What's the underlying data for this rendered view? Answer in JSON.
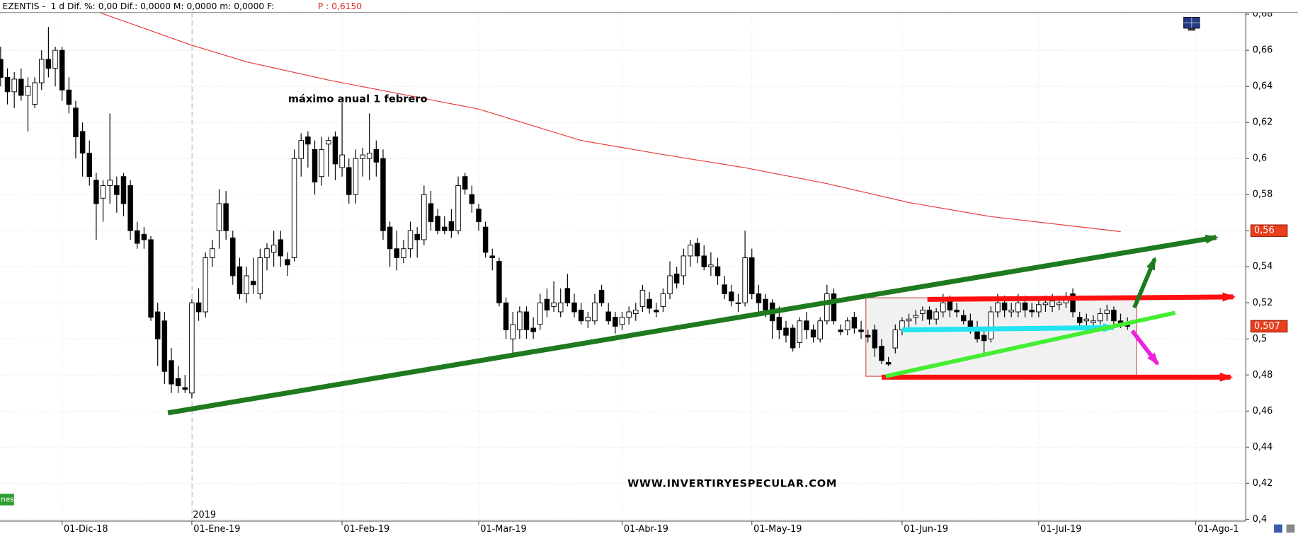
{
  "chart_data": {
    "type": "candlestick",
    "header": "EZENTIS -  1 d Dif. %: 0,00 Dif.: 0,0000 M: 0,0000 m: 0,0000 F:",
    "header_price": "P : 0,6150",
    "annotation": "máximo anual 1 febrero",
    "watermark": "WWW.INVERTIRYESPECULAR.COM",
    "year_label": "2019",
    "side_tag": "nes",
    "up_color": "#ffffff",
    "down_color": "#000000",
    "grid": true,
    "ylim": [
      0.399,
      0.681
    ],
    "yticks": [
      {
        "value": 0.4,
        "label": "0,4"
      },
      {
        "value": 0.42,
        "label": "0,42"
      },
      {
        "value": 0.44,
        "label": "0,44"
      },
      {
        "value": 0.46,
        "label": "0,46"
      },
      {
        "value": 0.48,
        "label": "0,48"
      },
      {
        "value": 0.5,
        "label": "0,5"
      },
      {
        "value": 0.52,
        "label": "0,52"
      },
      {
        "value": 0.54,
        "label": "0,54"
      },
      {
        "value": 0.56,
        "label": "0,56"
      },
      {
        "value": 0.58,
        "label": "0,58"
      },
      {
        "value": 0.6,
        "label": "0,6"
      },
      {
        "value": 0.62,
        "label": "0,62"
      },
      {
        "value": 0.64,
        "label": "0,64"
      },
      {
        "value": 0.66,
        "label": "0,66"
      },
      {
        "value": 0.68,
        "label": "0,68"
      }
    ],
    "categories": [
      null,
      null,
      null,
      null,
      null,
      null,
      null,
      null,
      null,
      "01-Dic-18",
      null,
      null,
      null,
      null,
      null,
      null,
      null,
      null,
      null,
      null,
      null,
      null,
      null,
      null,
      null,
      null,
      null,
      null,
      "01-Ene-19",
      null,
      null,
      null,
      null,
      null,
      null,
      null,
      null,
      null,
      null,
      null,
      null,
      null,
      null,
      null,
      null,
      null,
      null,
      null,
      null,
      null,
      "01-Feb-19",
      null,
      null,
      null,
      null,
      null,
      null,
      null,
      null,
      null,
      null,
      null,
      null,
      null,
      null,
      null,
      null,
      null,
      null,
      null,
      "01-Mar-19",
      null,
      null,
      null,
      null,
      null,
      null,
      null,
      null,
      null,
      null,
      null,
      null,
      null,
      null,
      null,
      null,
      null,
      null,
      null,
      null,
      "01-Abr-19",
      null,
      null,
      null,
      null,
      null,
      null,
      null,
      null,
      null,
      null,
      null,
      null,
      null,
      null,
      null,
      null,
      null,
      null,
      "01-May-19",
      null,
      null,
      null,
      null,
      null,
      null,
      null,
      null,
      null,
      null,
      null,
      null,
      null,
      null,
      null,
      null,
      null,
      null,
      null,
      null,
      null,
      "01-Jun-19",
      null,
      null,
      null,
      null,
      null,
      null,
      null,
      null,
      null,
      null,
      null,
      null,
      null,
      null,
      null,
      null,
      null,
      null,
      null,
      "01-Jul-19",
      null,
      null,
      null,
      null,
      null,
      null,
      null,
      null,
      null,
      null,
      null,
      null,
      null,
      null,
      null,
      null,
      null,
      null,
      null,
      null,
      null,
      null,
      "01-Ago-1"
    ],
    "ohlc": [
      [
        0.655,
        0.662,
        0.64,
        0.645
      ],
      [
        0.645,
        0.65,
        0.63,
        0.637
      ],
      [
        0.637,
        0.648,
        0.628,
        0.644
      ],
      [
        0.644,
        0.65,
        0.632,
        0.635
      ],
      [
        0.635,
        0.645,
        0.615,
        0.64
      ],
      [
        0.63,
        0.645,
        0.628,
        0.642
      ],
      [
        0.642,
        0.66,
        0.638,
        0.655
      ],
      [
        0.655,
        0.673,
        0.645,
        0.65
      ],
      [
        0.65,
        0.662,
        0.64,
        0.66
      ],
      [
        0.66,
        0.662,
        0.632,
        0.638
      ],
      [
        0.638,
        0.645,
        0.625,
        0.63
      ],
      [
        0.628,
        0.632,
        0.6,
        0.612
      ],
      [
        0.615,
        0.62,
        0.59,
        0.603
      ],
      [
        0.603,
        0.61,
        0.585,
        0.59
      ],
      [
        0.588,
        0.592,
        0.555,
        0.575
      ],
      [
        0.578,
        0.588,
        0.565,
        0.585
      ],
      [
        0.585,
        0.625,
        0.575,
        0.588
      ],
      [
        0.585,
        0.59,
        0.57,
        0.58
      ],
      [
        0.59,
        0.592,
        0.568,
        0.575
      ],
      [
        0.585,
        0.588,
        0.555,
        0.56
      ],
      [
        0.56,
        0.565,
        0.55,
        0.553
      ],
      [
        0.558,
        0.562,
        0.55,
        0.555
      ],
      [
        0.555,
        0.557,
        0.51,
        0.512
      ],
      [
        0.515,
        0.52,
        0.485,
        0.5
      ],
      [
        0.51,
        0.515,
        0.475,
        0.482
      ],
      [
        0.488,
        0.495,
        0.47,
        0.475
      ],
      [
        0.478,
        0.485,
        0.47,
        0.474
      ],
      [
        0.473,
        0.48,
        0.47,
        0.472
      ],
      [
        0.47,
        0.522,
        0.467,
        0.52
      ],
      [
        0.52,
        0.528,
        0.51,
        0.515
      ],
      [
        0.515,
        0.548,
        0.512,
        0.545
      ],
      [
        0.545,
        0.555,
        0.54,
        0.55
      ],
      [
        0.56,
        0.583,
        0.55,
        0.575
      ],
      [
        0.575,
        0.582,
        0.555,
        0.56
      ],
      [
        0.556,
        0.56,
        0.53,
        0.535
      ],
      [
        0.54,
        0.545,
        0.522,
        0.525
      ],
      [
        0.525,
        0.54,
        0.52,
        0.535
      ],
      [
        0.532,
        0.545,
        0.525,
        0.53
      ],
      [
        0.525,
        0.55,
        0.522,
        0.545
      ],
      [
        0.545,
        0.553,
        0.538,
        0.55
      ],
      [
        0.548,
        0.56,
        0.54,
        0.552
      ],
      [
        0.555,
        0.56,
        0.54,
        0.546
      ],
      [
        0.544,
        0.548,
        0.535,
        0.541
      ],
      [
        0.545,
        0.605,
        0.543,
        0.6
      ],
      [
        0.6,
        0.614,
        0.59,
        0.61
      ],
      [
        0.612,
        0.615,
        0.595,
        0.608
      ],
      [
        0.605,
        0.61,
        0.58,
        0.587
      ],
      [
        0.59,
        0.612,
        0.585,
        0.605
      ],
      [
        0.608,
        0.612,
        0.59,
        0.61
      ],
      [
        0.612,
        0.615,
        0.588,
        0.597
      ],
      [
        0.595,
        0.631,
        0.59,
        0.602
      ],
      [
        0.595,
        0.6,
        0.575,
        0.58
      ],
      [
        0.58,
        0.605,
        0.575,
        0.6
      ],
      [
        0.6,
        0.606,
        0.59,
        0.602
      ],
      [
        0.6,
        0.625,
        0.588,
        0.603
      ],
      [
        0.605,
        0.61,
        0.59,
        0.598
      ],
      [
        0.6,
        0.605,
        0.555,
        0.56
      ],
      [
        0.562,
        0.565,
        0.54,
        0.55
      ],
      [
        0.55,
        0.56,
        0.538,
        0.545
      ],
      [
        0.545,
        0.555,
        0.542,
        0.55
      ],
      [
        0.55,
        0.565,
        0.545,
        0.56
      ],
      [
        0.558,
        0.562,
        0.545,
        0.555
      ],
      [
        0.555,
        0.585,
        0.552,
        0.58
      ],
      [
        0.575,
        0.582,
        0.56,
        0.565
      ],
      [
        0.568,
        0.572,
        0.558,
        0.56
      ],
      [
        0.562,
        0.568,
        0.558,
        0.56
      ],
      [
        0.565,
        0.572,
        0.556,
        0.56
      ],
      [
        0.56,
        0.59,
        0.558,
        0.585
      ],
      [
        0.59,
        0.592,
        0.58,
        0.583
      ],
      [
        0.58,
        0.585,
        0.57,
        0.575
      ],
      [
        0.572,
        0.575,
        0.56,
        0.565
      ],
      [
        0.562,
        0.565,
        0.545,
        0.548
      ],
      [
        0.546,
        0.55,
        0.538,
        0.545
      ],
      [
        0.543,
        0.545,
        0.518,
        0.52
      ],
      [
        0.52,
        0.523,
        0.5,
        0.505
      ],
      [
        0.5,
        0.515,
        0.49,
        0.508
      ],
      [
        0.505,
        0.518,
        0.5,
        0.515
      ],
      [
        0.515,
        0.518,
        0.5,
        0.505
      ],
      [
        0.506,
        0.512,
        0.5,
        0.504
      ],
      [
        0.508,
        0.525,
        0.505,
        0.52
      ],
      [
        0.522,
        0.528,
        0.512,
        0.516
      ],
      [
        0.518,
        0.532,
        0.515,
        0.52
      ],
      [
        0.515,
        0.528,
        0.512,
        0.52
      ],
      [
        0.528,
        0.536,
        0.518,
        0.52
      ],
      [
        0.52,
        0.525,
        0.512,
        0.515
      ],
      [
        0.516,
        0.52,
        0.508,
        0.51
      ],
      [
        0.51,
        0.515,
        0.506,
        0.512
      ],
      [
        0.51,
        0.525,
        0.508,
        0.52
      ],
      [
        0.527,
        0.53,
        0.518,
        0.52
      ],
      [
        0.515,
        0.52,
        0.508,
        0.51
      ],
      [
        0.512,
        0.515,
        0.503,
        0.507
      ],
      [
        0.508,
        0.515,
        0.505,
        0.512
      ],
      [
        0.512,
        0.518,
        0.508,
        0.515
      ],
      [
        0.514,
        0.52,
        0.51,
        0.516
      ],
      [
        0.518,
        0.53,
        0.515,
        0.527
      ],
      [
        0.522,
        0.526,
        0.514,
        0.517
      ],
      [
        0.516,
        0.52,
        0.512,
        0.515
      ],
      [
        0.518,
        0.528,
        0.515,
        0.525
      ],
      [
        0.525,
        0.543,
        0.522,
        0.535
      ],
      [
        0.536,
        0.54,
        0.528,
        0.531
      ],
      [
        0.535,
        0.55,
        0.53,
        0.546
      ],
      [
        0.546,
        0.555,
        0.54,
        0.552
      ],
      [
        0.553,
        0.556,
        0.542,
        0.546
      ],
      [
        0.546,
        0.552,
        0.538,
        0.54
      ],
      [
        0.54,
        0.548,
        0.535,
        0.541
      ],
      [
        0.54,
        0.545,
        0.53,
        0.535
      ],
      [
        0.53,
        0.535,
        0.522,
        0.525
      ],
      [
        0.526,
        0.53,
        0.518,
        0.521
      ],
      [
        0.52,
        0.525,
        0.515,
        0.52
      ],
      [
        0.52,
        0.56,
        0.518,
        0.545
      ],
      [
        0.545,
        0.55,
        0.522,
        0.525
      ],
      [
        0.525,
        0.53,
        0.515,
        0.52
      ],
      [
        0.522,
        0.525,
        0.512,
        0.516
      ],
      [
        0.52,
        0.522,
        0.5,
        0.51
      ],
      [
        0.512,
        0.518,
        0.5,
        0.505
      ],
      [
        0.506,
        0.51,
        0.498,
        0.502
      ],
      [
        0.506,
        0.508,
        0.493,
        0.495
      ],
      [
        0.498,
        0.512,
        0.495,
        0.51
      ],
      [
        0.51,
        0.515,
        0.5,
        0.505
      ],
      [
        0.505,
        0.508,
        0.498,
        0.501
      ],
      [
        0.5,
        0.512,
        0.498,
        0.51
      ],
      [
        0.51,
        0.53,
        0.508,
        0.525
      ],
      [
        0.525,
        0.528,
        0.508,
        0.51
      ],
      [
        0.505,
        0.508,
        0.502,
        0.504
      ],
      [
        0.505,
        0.512,
        0.502,
        0.51
      ],
      [
        0.512,
        0.515,
        0.503,
        0.506
      ],
      [
        0.505,
        0.51,
        0.5,
        0.504
      ],
      [
        0.502,
        0.505,
        0.498,
        0.501
      ],
      [
        0.505,
        0.508,
        0.49,
        0.495
      ],
      [
        0.496,
        0.5,
        0.486,
        0.488
      ],
      [
        0.487,
        0.49,
        0.485,
        0.486
      ],
      [
        0.495,
        0.508,
        0.492,
        0.505
      ],
      [
        0.505,
        0.512,
        0.502,
        0.51
      ],
      [
        0.51,
        0.514,
        0.505,
        0.511
      ],
      [
        0.512,
        0.516,
        0.508,
        0.513
      ],
      [
        0.514,
        0.518,
        0.51,
        0.516
      ],
      [
        0.516,
        0.518,
        0.508,
        0.511
      ],
      [
        0.511,
        0.517,
        0.508,
        0.515
      ],
      [
        0.515,
        0.525,
        0.512,
        0.52
      ],
      [
        0.521,
        0.524,
        0.512,
        0.516
      ],
      [
        0.516,
        0.52,
        0.512,
        0.515
      ],
      [
        0.513,
        0.516,
        0.508,
        0.51
      ],
      [
        0.51,
        0.514,
        0.503,
        0.506
      ],
      [
        0.506,
        0.51,
        0.498,
        0.5
      ],
      [
        0.502,
        0.506,
        0.49,
        0.499
      ],
      [
        0.5,
        0.518,
        0.498,
        0.515
      ],
      [
        0.515,
        0.525,
        0.512,
        0.52
      ],
      [
        0.52,
        0.524,
        0.512,
        0.516
      ],
      [
        0.515,
        0.52,
        0.512,
        0.516
      ],
      [
        0.515,
        0.525,
        0.512,
        0.52
      ],
      [
        0.52,
        0.524,
        0.512,
        0.516
      ],
      [
        0.516,
        0.52,
        0.512,
        0.515
      ],
      [
        0.515,
        0.522,
        0.512,
        0.519
      ],
      [
        0.519,
        0.524,
        0.515,
        0.52
      ],
      [
        0.518,
        0.525,
        0.515,
        0.521
      ],
      [
        0.519,
        0.524,
        0.516,
        0.52
      ],
      [
        0.52,
        0.526,
        0.517,
        0.522
      ],
      [
        0.525,
        0.528,
        0.512,
        0.515
      ],
      [
        0.512,
        0.515,
        0.507,
        0.509
      ],
      [
        0.51,
        0.514,
        0.507,
        0.511
      ],
      [
        0.509,
        0.513,
        0.506,
        0.51
      ],
      [
        0.51,
        0.517,
        0.508,
        0.514
      ],
      [
        0.514,
        0.519,
        0.51,
        0.516
      ],
      [
        0.516,
        0.518,
        0.508,
        0.51
      ],
      [
        0.51,
        0.514,
        0.506,
        0.508
      ],
      [
        0.508,
        0.512,
        0.505,
        0.507
      ],
      null,
      null,
      null,
      null,
      null,
      null,
      null,
      null,
      null,
      null
    ],
    "ma": {
      "color": "#e83a3a",
      "x": [
        14,
        28,
        36,
        48,
        70,
        85,
        97,
        109,
        121,
        133,
        145,
        164
      ],
      "values": [
        0.6816,
        0.6628,
        0.6536,
        0.6435,
        0.6274,
        0.61,
        0.6022,
        0.5949,
        0.5861,
        0.5756,
        0.5678,
        0.5595
      ]
    },
    "ma_label": {
      "value": 0.56,
      "label": "0,56"
    },
    "last_label": {
      "value": 0.507,
      "label": "0,507"
    },
    "box": {
      "x1": 126.7,
      "x2": 166.3,
      "y1": 0.4793,
      "y2": 0.5228,
      "fill": "#f1f1f1",
      "stroke": "#c03030"
    },
    "drawings": [
      {
        "x1": 24.5,
        "y1": 0.459,
        "x2": 178,
        "y2": 0.5563,
        "color": "#1e7a1e",
        "width": 6,
        "arrow": true
      },
      {
        "x1": 135.7,
        "y1": 0.5219,
        "x2": 180.5,
        "y2": 0.5233,
        "color": "#ff1010",
        "width": 6,
        "arrow": true
      },
      {
        "x1": 129,
        "y1": 0.4788,
        "x2": 180.1,
        "y2": 0.4788,
        "color": "#ff1010",
        "width": 6,
        "arrow": true
      },
      {
        "x1": 132,
        "y1": 0.505,
        "x2": 163,
        "y2": 0.5063,
        "color": "#22e4f0",
        "width": 6,
        "arrow": true
      },
      {
        "x1": 129.6,
        "y1": 0.4793,
        "x2": 172,
        "y2": 0.5145,
        "color": "#44ee33",
        "width": 5,
        "arrow": false
      },
      {
        "x1": 166,
        "y1": 0.5173,
        "x2": 169,
        "y2": 0.5444,
        "color": "#1e7a1e",
        "width": 5,
        "arrow": true
      },
      {
        "x1": 165.7,
        "y1": 0.5045,
        "x2": 169.4,
        "y2": 0.4862,
        "color": "#ee22dd",
        "width": 5,
        "arrow": true
      }
    ]
  }
}
